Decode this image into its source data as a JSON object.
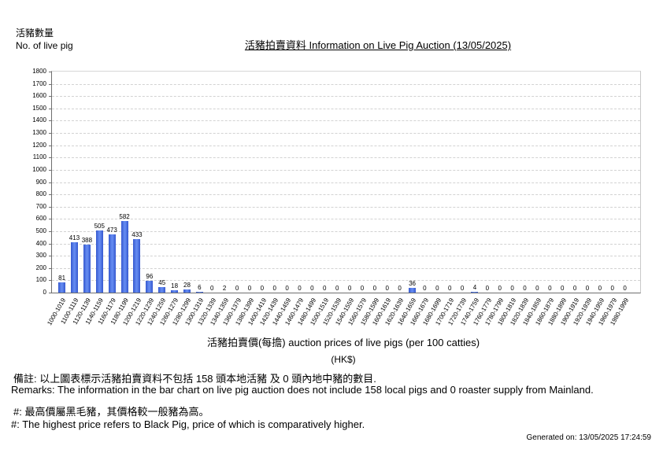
{
  "header": {
    "y_axis_unit_cjk": "活豬數量",
    "y_axis_unit_en": "No. of live pig",
    "title": "活豬拍賣資料 Information on Live Pig Auction (13/05/2025)"
  },
  "chart_data": {
    "type": "bar",
    "title": "活豬拍賣資料 Information on Live Pig Auction (13/05/2025)",
    "ylabel": "活豬數量 No. of live pig",
    "xlabel": "活豬拍賣價(每擔) auction prices of live pigs (per 100 catties)",
    "xlabel_line2": "(HK$)",
    "ylim": [
      0,
      1800
    ],
    "ytick_step": 100,
    "grid": true,
    "legend": "none",
    "bar_color": "#4169e1",
    "categories": [
      "1000-1019",
      "1100-1119",
      "1120-1139",
      "1140-1159",
      "1160-1179",
      "1180-1199",
      "1200-1219",
      "1220-1239",
      "1240-1259",
      "1260-1279",
      "1280-1299",
      "1300-1319",
      "1320-1339",
      "1340-1359",
      "1360-1379",
      "1380-1399",
      "1400-1419",
      "1420-1439",
      "1440-1459",
      "1460-1479",
      "1480-1499",
      "1500-1519",
      "1520-1539",
      "1540-1559",
      "1560-1579",
      "1580-1599",
      "1600-1619",
      "1620-1639",
      "1640-1659",
      "1660-1679",
      "1680-1699",
      "1700-1719",
      "1720-1739",
      "1740-1759",
      "1760-1779",
      "1780-1799",
      "1800-1819",
      "1820-1839",
      "1840-1859",
      "1860-1879",
      "1880-1899",
      "1900-1919",
      "1920-1939",
      "1940-1959",
      "1960-1979",
      "1980-1999"
    ],
    "values": [
      81,
      413,
      388,
      505,
      473,
      582,
      433,
      96,
      45,
      18,
      28,
      6,
      0,
      2,
      0,
      0,
      0,
      0,
      0,
      0,
      0,
      0,
      0,
      0,
      0,
      0,
      0,
      0,
      36,
      0,
      0,
      0,
      0,
      4,
      0,
      0,
      0,
      0,
      0,
      0,
      0,
      0,
      0,
      0,
      0,
      0
    ]
  },
  "remarks": {
    "line1_cjk": "備註:        以上圖表標示活豬拍賣資料不包括 158 頭本地活豬 及 0 頭內地中豬的數目.",
    "line2_en": "Remarks: The information in the bar chart on live pig auction does not include 158 local pigs and 0 roaster supply from Mainland.",
    "line3_cjk": "#: 最高價屬黑毛豬，其價格較一般豬為高。",
    "line4_en": "#: The highest price refers to Black Pig, price of which is comparatively higher."
  },
  "footer": {
    "generated_on": "Generated on: 13/05/2025 17:24:59"
  }
}
